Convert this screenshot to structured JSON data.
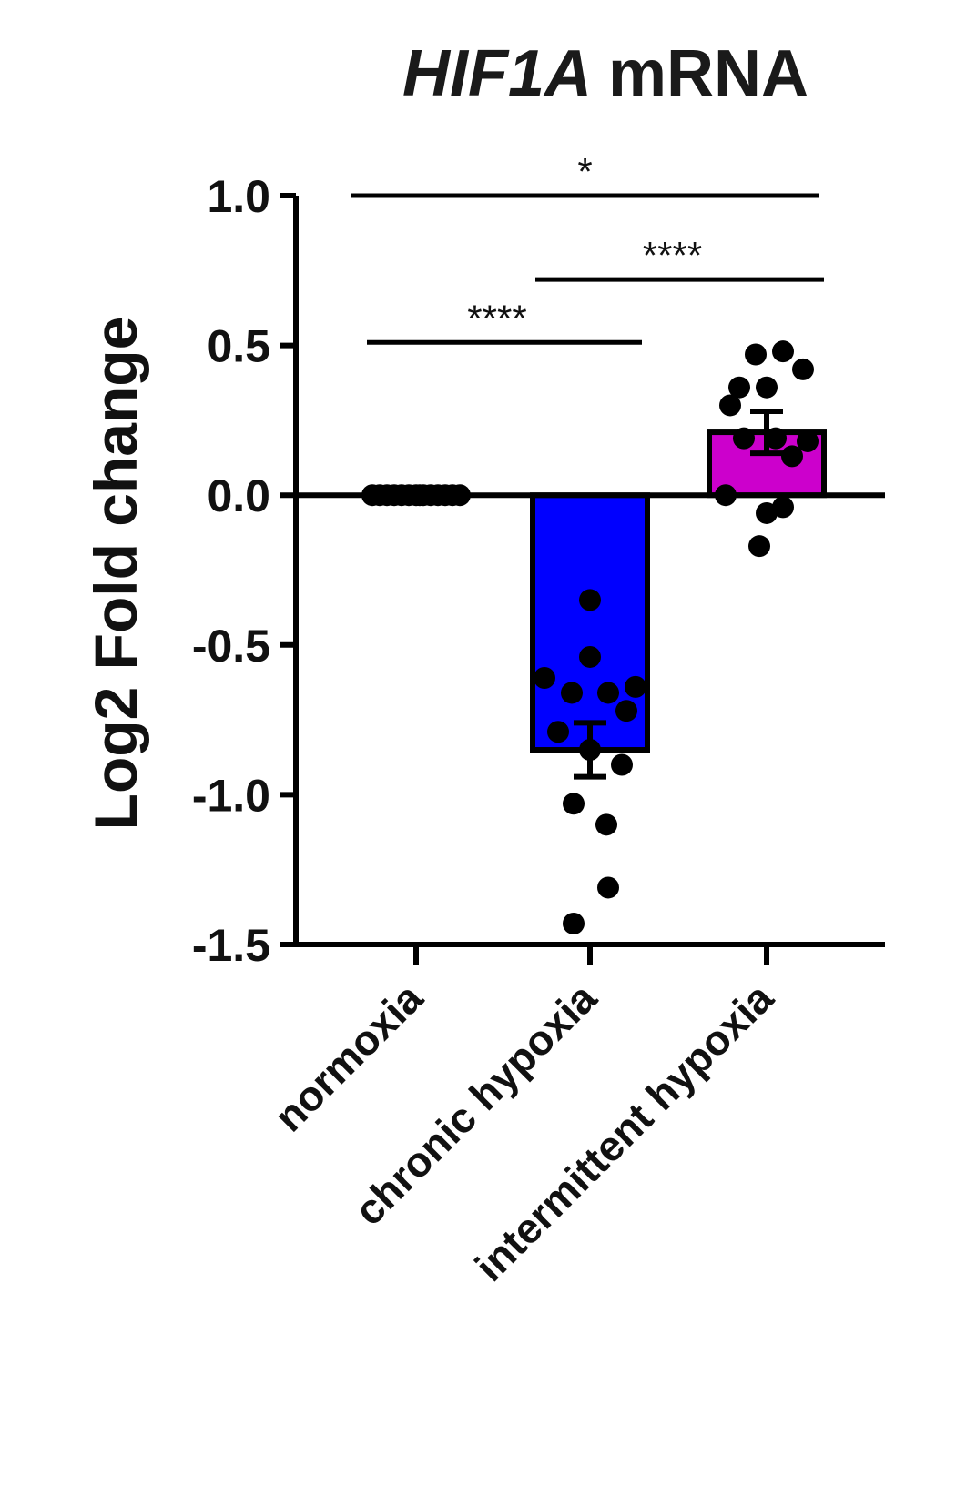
{
  "chart_data": {
    "type": "bar",
    "title_gene": "HIF1A",
    "title_rest": "mRNA",
    "ylabel": "Log2 Fold change",
    "xlabel": "",
    "ylim": [
      -1.5,
      1.0
    ],
    "yticks": [
      "1.0",
      "0.5",
      "0.0",
      "-0.5",
      "-1.0",
      "-1.5"
    ],
    "ytick_values": [
      1.0,
      0.5,
      0.0,
      -0.5,
      -1.0,
      -1.5
    ],
    "categories": [
      "normoxia",
      "chronic hypoxia",
      "intermittent hypoxia"
    ],
    "values": [
      0.0,
      -0.85,
      0.21
    ],
    "errors": [
      0.0,
      0.09,
      0.07
    ],
    "colors": [
      "#000000",
      "#0000ff",
      "#cc00cc"
    ],
    "points": [
      [
        0,
        0,
        0,
        0,
        0,
        0,
        0,
        0,
        0,
        0,
        0,
        0,
        0,
        0
      ],
      [
        -0.35,
        -0.54,
        -0.61,
        -0.64,
        -0.66,
        -0.66,
        -0.72,
        -0.79,
        -0.85,
        -0.9,
        -1.03,
        -1.1,
        -1.31,
        -1.43
      ],
      [
        0.47,
        0.48,
        0.42,
        0.36,
        0.36,
        0.3,
        0.19,
        0.19,
        0.18,
        0.13,
        0.0,
        -0.04,
        -0.06,
        -0.17
      ]
    ],
    "significance": [
      {
        "label": "*",
        "from": 0,
        "to": 2,
        "y": 1.0
      },
      {
        "label": "****",
        "from": 1,
        "to": 2,
        "y": 0.72
      },
      {
        "label": "****",
        "from": 0,
        "to": 1,
        "y": 0.51
      }
    ],
    "grid": false,
    "legend": "none"
  }
}
